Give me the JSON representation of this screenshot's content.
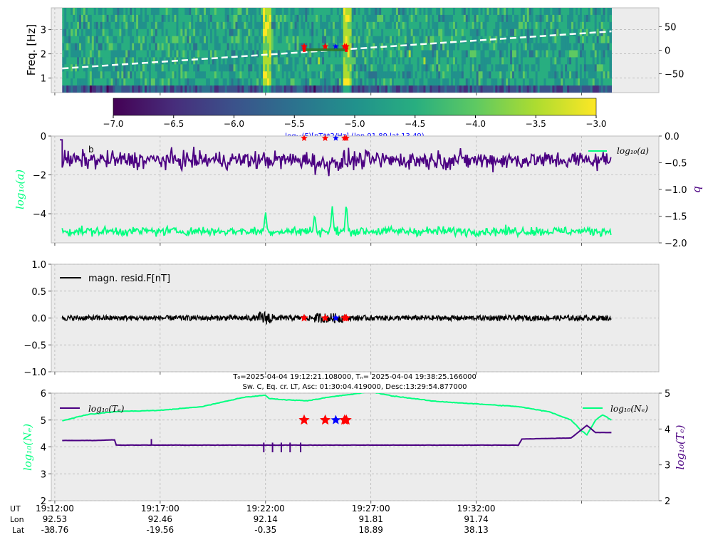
{
  "colors": {
    "green": "#00ff7f",
    "purple": "#4b0082",
    "red": "#ff0000",
    "blue": "#0000ff",
    "panel_bg": "#ececec",
    "grid": "#b0b0b0",
    "dark_green": "#2e7d32"
  },
  "chart_data": [
    {
      "type": "heatmap",
      "ylabel": "Freq. [Hz]",
      "y_ticks": [
        "1",
        "2",
        "3"
      ],
      "ylim": [
        0.4,
        3.9
      ],
      "right_y_ticks": [
        "50",
        "0",
        "−50"
      ],
      "right_ylim": [
        -90,
        90
      ],
      "colorbar": {
        "ticks": [
          "−7.0",
          "−6.5",
          "−6.0",
          "−5.5",
          "−5.0",
          "−4.5",
          "−4.0",
          "−3.5",
          "−3.0"
        ],
        "range": [
          -7.0,
          -3.0
        ],
        "colormap": "viridis",
        "label": "log₁₀(F)[nT**2/Hz] (lon 91.89 lat 13.49)"
      },
      "overlay": "latitude line (white dashed) from -38.76 to 40; event markers near 19:24:30"
    },
    {
      "type": "line",
      "ylabel": "log₁₀(a)",
      "y_ticks": [
        "0",
        "−2",
        "−4"
      ],
      "ylim": [
        -5.5,
        0
      ],
      "right_ylabel": "b",
      "right_y_ticks": [
        "0.0",
        "−0.5",
        "−1.0",
        "−1.5",
        "−2.0"
      ],
      "right_ylim": [
        -2.0,
        0.0
      ],
      "legend": [
        "b",
        "log₁₀(a)"
      ],
      "series": [
        {
          "name": "log₁₀(a)",
          "axis": "left",
          "color": "#00ff7f",
          "baseline": -4.9,
          "noise": 0.28,
          "spikes": [
            {
              "t": "19:22:00",
              "v": -3.9
            },
            {
              "t": "19:24:20",
              "v": -4.0
            },
            {
              "t": "19:25:10",
              "v": -3.6
            },
            {
              "t": "19:25:50",
              "v": -3.4
            }
          ]
        },
        {
          "name": "b",
          "axis": "right",
          "color": "#4b0082",
          "baseline": -0.45,
          "noise": 0.18,
          "start_value": -0.07
        }
      ]
    },
    {
      "type": "line",
      "ylim": [
        -1.0,
        1.0
      ],
      "y_ticks": [
        "1.0",
        "0.5",
        "0.0",
        "−0.5",
        "−1.0"
      ],
      "legend": [
        "magn. resid.F[nT]"
      ],
      "series": [
        {
          "name": "magn. resid.F[nT]",
          "color": "#000000",
          "amplitude": 0.05
        }
      ]
    },
    {
      "type": "line",
      "title_line1": "T₀=2025-04-04 19:12:21.108000, Tₙ= 2025-04-04 19:38:25.166000",
      "title_line2": "Sw. C, Eq. cr. LT, Asc: 01:30:04.419000, Desc:13:29:54.877000",
      "ylabel": "log₁₀(Nₑ)",
      "right_ylabel": "log₁₀(Tₑ)",
      "y_ticks": [
        "6",
        "5",
        "4",
        "3",
        "2"
      ],
      "ylim": [
        2,
        6
      ],
      "right_y_ticks": [
        "5",
        "4",
        "3",
        "2"
      ],
      "right_ylim": [
        2,
        5
      ],
      "legend_left": "log₁₀(Tₑ)",
      "legend_right": "log₁₀(Nₑ)",
      "series": [
        {
          "name": "log₁₀(Nₑ)",
          "color": "#00ff7f",
          "points": [
            [
              "19:12:21",
              4.97
            ],
            [
              "19:13:30",
              5.2
            ],
            [
              "19:15:00",
              5.32
            ],
            [
              "19:17:00",
              5.36
            ],
            [
              "19:19:00",
              5.5
            ],
            [
              "19:21:00",
              5.85
            ],
            [
              "19:22:00",
              5.92
            ],
            [
              "19:22:10",
              5.8
            ],
            [
              "19:23:00",
              5.75
            ],
            [
              "19:24:00",
              5.72
            ],
            [
              "19:25:00",
              5.85
            ],
            [
              "19:26:00",
              5.95
            ],
            [
              "19:27:00",
              6.05
            ],
            [
              "19:28:00",
              5.9
            ],
            [
              "19:30:00",
              5.7
            ],
            [
              "19:32:00",
              5.6
            ],
            [
              "19:34:00",
              5.5
            ],
            [
              "19:35:30",
              5.3
            ],
            [
              "19:36:30",
              5.0
            ],
            [
              "19:37:00",
              4.6
            ],
            [
              "19:37:15",
              4.45
            ],
            [
              "19:37:40",
              5.0
            ],
            [
              "19:38:00",
              5.2
            ],
            [
              "19:38:25",
              5.0
            ]
          ]
        },
        {
          "name": "log₁₀(Tₑ)",
          "color": "#4b0082",
          "points": [
            [
              "19:12:21",
              3.68
            ],
            [
              "19:14:00",
              3.68
            ],
            [
              "19:14:50",
              3.7
            ],
            [
              "19:14:55",
              3.55
            ],
            [
              "19:22:00",
              3.55
            ],
            [
              "19:25:00",
              3.55
            ],
            [
              "19:34:00",
              3.55
            ],
            [
              "19:34:10",
              3.72
            ],
            [
              "19:36:30",
              3.75
            ],
            [
              "19:37:15",
              4.1
            ],
            [
              "19:37:40",
              3.9
            ],
            [
              "19:38:25",
              3.9
            ]
          ]
        }
      ],
      "markers": {
        "red_stars_y": 5.0,
        "blue_star_y": 5.0
      }
    }
  ],
  "x_axis": {
    "row_labels": [
      "UT",
      "Lon",
      "Lat"
    ],
    "separator": ":",
    "ticks": [
      {
        "ut": "19:12:00",
        "lon": "92.53",
        "lat": "-38.76"
      },
      {
        "ut": "19:17:00",
        "lon": "92.46",
        "lat": "-19.56"
      },
      {
        "ut": "19:22:00",
        "lon": "92.14",
        "lat": "-0.35"
      },
      {
        "ut": "19:27:00",
        "lon": "91.81",
        "lat": "18.89"
      },
      {
        "ut": "19:32:00",
        "lon": "91.74",
        "lat": "38.13"
      }
    ],
    "range": [
      "19:11:50",
      "19:40:40"
    ],
    "data_range": [
      "19:12:21",
      "19:38:25"
    ]
  },
  "events": {
    "red": [
      "19:23:50",
      "19:24:50",
      "19:25:45",
      "19:25:50"
    ],
    "blue": [
      "19:25:20"
    ]
  }
}
